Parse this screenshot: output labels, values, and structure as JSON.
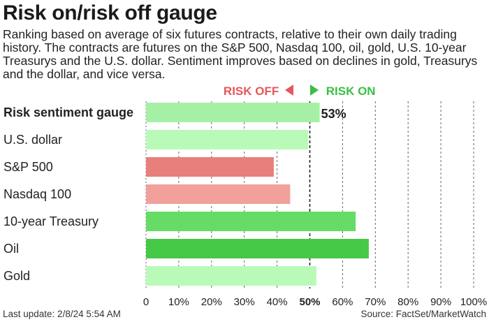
{
  "header": {
    "title": "Risk on/risk off gauge",
    "subtitle": "Ranking based on average of six futures contracts, relative to their own daily trading history. The contracts are futures on the S&P 500, Nasdaq 100, oil, gold, U.S. 10-year Treasurys and the U.S. dollar. Sentiment improves based on declines in gold, Treasurys and the dollar, and vice versa."
  },
  "legend": {
    "risk_off": "RISK OFF",
    "risk_on": "RISK ON",
    "risk_off_color": "#e4575a",
    "risk_on_color": "#3bbf45"
  },
  "footer": {
    "last_update": "Last update: 2/8/24 5:54 AM",
    "source": "Source: FactSet/MarketWatch"
  },
  "chart_data": {
    "type": "bar",
    "orientation": "horizontal",
    "categories": [
      "Risk sentiment gauge",
      "U.S. dollar",
      "S&P 500",
      "Nasdaq 100",
      "10-year Treasury",
      "Oil",
      "Gold"
    ],
    "values": [
      53,
      49.5,
      39,
      44,
      64,
      68,
      52
    ],
    "colors": [
      "#a5f0a5",
      "#b9fab9",
      "#e87f7c",
      "#f2a09c",
      "#66dc66",
      "#46c946",
      "#b9fab9"
    ],
    "highlight_category": "Risk sentiment gauge",
    "highlight_value_label": "53%",
    "xlim": [
      0,
      100
    ],
    "xticks": [
      0,
      10,
      20,
      30,
      40,
      50,
      60,
      70,
      80,
      90,
      100
    ],
    "xtick_labels": [
      "0",
      "10%",
      "20%",
      "30%",
      "40%",
      "50%",
      "60%",
      "70%",
      "80%",
      "90%",
      "100%"
    ],
    "emphasized_tick": 50,
    "grid": "vertical dashed"
  }
}
